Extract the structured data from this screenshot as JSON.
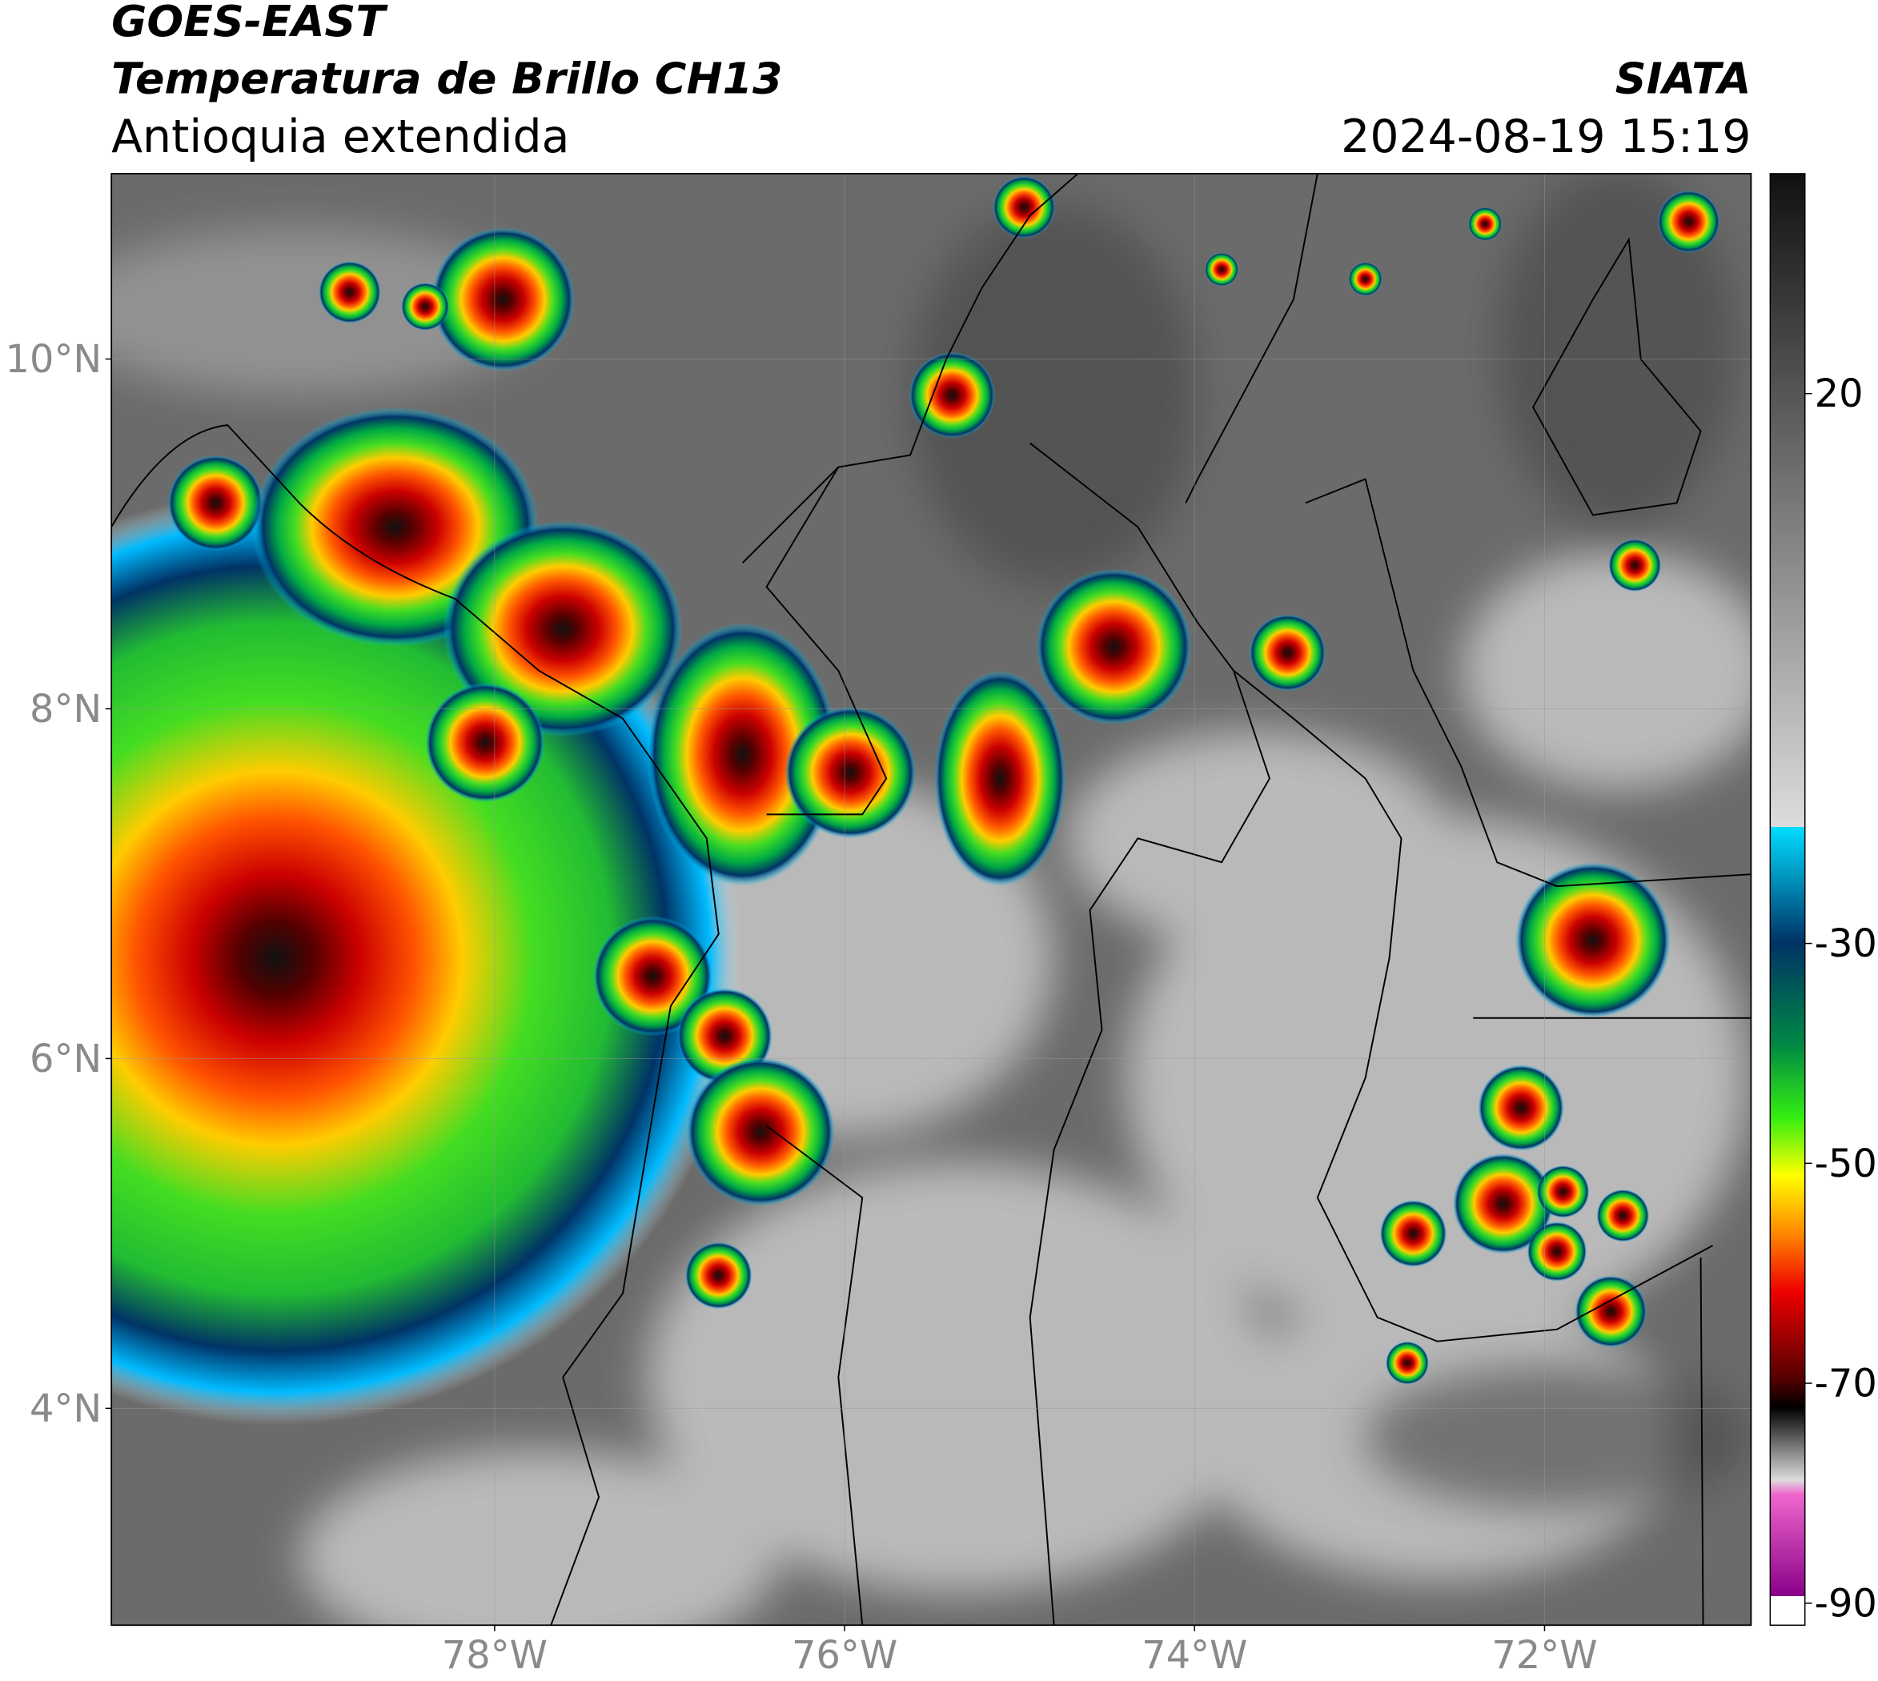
{
  "header": {
    "title": "GOES-EAST",
    "subtitle": "Temperatura de Brillo CH13",
    "region": "Antioquia extendida",
    "source": "SIATA",
    "datetime": "2024-08-19 15:19"
  },
  "map": {
    "xlim": [
      -80.19,
      -70.82
    ],
    "ylim": [
      2.76,
      11.06
    ],
    "xticks": [
      {
        "value": -78,
        "label": "78°W"
      },
      {
        "value": -76,
        "label": "76°W"
      },
      {
        "value": -74,
        "label": "74°W"
      },
      {
        "value": -72,
        "label": "72°W"
      }
    ],
    "yticks": [
      {
        "value": 4,
        "label": "4°N"
      },
      {
        "value": 6,
        "label": "6°N"
      },
      {
        "value": 8,
        "label": "8°N"
      },
      {
        "value": 10,
        "label": "10°N"
      }
    ],
    "grid": true
  },
  "colorbar": {
    "clim": [
      -92,
      40
    ],
    "ticks": [
      20,
      -30,
      -50,
      -70,
      -90
    ]
  }
}
